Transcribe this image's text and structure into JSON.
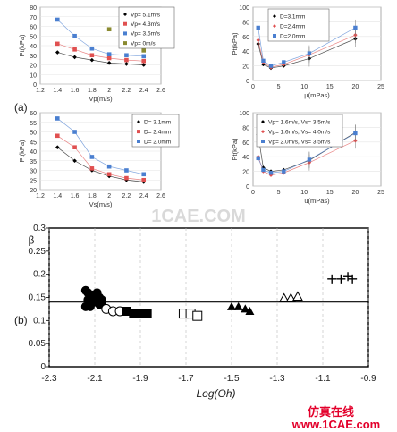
{
  "panel_labels": {
    "a": "(a)",
    "b": "(b)"
  },
  "watermark": {
    "center": "1CAE.COM",
    "corner_cn": "仿真在线",
    "corner_url": "www.1CAE.com",
    "color": "#d9d9d9",
    "corner_color": "#e3002b"
  },
  "chart_data": [
    {
      "id": "a1",
      "type": "scatter",
      "xlabel": "Vp(m/s)",
      "ylabel": "Pt(kPa)",
      "xlim": [
        1.2,
        2.6
      ],
      "ylim": [
        0,
        80
      ],
      "xticks": [
        "1.2",
        "1.4",
        "1.6",
        "1.8",
        "2",
        "2.2",
        "2.4",
        "2.6"
      ],
      "yticks": [
        "0",
        "10",
        "20",
        "30",
        "40",
        "50",
        "60",
        "70",
        "80"
      ],
      "legend_loc": "top-right",
      "series": [
        {
          "name": "Vp= 5.1m/s",
          "marker": "diamond",
          "color": "#000000",
          "x": [
            1.4,
            1.6,
            1.8,
            2.0,
            2.2,
            2.4
          ],
          "y": [
            33,
            28,
            25,
            22,
            21,
            20
          ],
          "line": true
        },
        {
          "name": "Vp= 4.3m/s",
          "marker": "square",
          "color": "#e05050",
          "x": [
            1.4,
            1.6,
            1.8,
            2.0,
            2.2,
            2.4
          ],
          "y": [
            42,
            36,
            30,
            27,
            25,
            24
          ],
          "line": true
        },
        {
          "name": "Vp= 3.5m/s",
          "marker": "square",
          "color": "#4a7fd0",
          "x": [
            1.4,
            1.6,
            1.8,
            2.0,
            2.2,
            2.4
          ],
          "y": [
            67,
            50,
            37,
            31,
            30,
            29
          ],
          "line": true
        },
        {
          "name": "Vp= 0m/s",
          "marker": "square",
          "color": "#8a8a30",
          "x": [
            2.0,
            2.2,
            2.4
          ],
          "y": [
            57,
            43,
            35
          ],
          "line": false
        }
      ]
    },
    {
      "id": "a2",
      "type": "scatter",
      "xlabel": "μ(mPas)",
      "ylabel": "Pt(kPa)",
      "xlim": [
        0,
        25
      ],
      "ylim": [
        0,
        100
      ],
      "xticks": [
        "0",
        "5",
        "10",
        "15",
        "20",
        "25"
      ],
      "yticks": [
        "0",
        "20",
        "40",
        "60",
        "80",
        "100"
      ],
      "legend_loc": "top-left",
      "series": [
        {
          "name": "D=3.1mm",
          "marker": "diamond",
          "color": "#000000",
          "x": [
            1,
            2,
            3.5,
            6,
            11,
            20
          ],
          "y": [
            50,
            22,
            17,
            20,
            30,
            57
          ],
          "line": true
        },
        {
          "name": "D=2.4mm",
          "marker": "diamond",
          "color": "#e05050",
          "x": [
            1,
            2,
            3.5,
            6,
            11,
            20
          ],
          "y": [
            55,
            25,
            18,
            22,
            35,
            62
          ],
          "line": true
        },
        {
          "name": "D=2.0mm",
          "marker": "square",
          "color": "#4a7fd0",
          "x": [
            1,
            2,
            3.5,
            6,
            11,
            20
          ],
          "y": [
            72,
            27,
            20,
            25,
            37,
            72
          ],
          "line": true
        }
      ]
    },
    {
      "id": "a3",
      "type": "scatter",
      "xlabel": "Vs(m/s)",
      "ylabel": "Pt(kPa)",
      "xlim": [
        1.2,
        2.6
      ],
      "ylim": [
        20,
        60
      ],
      "xticks": [
        "1.2",
        "1.4",
        "1.6",
        "1.8",
        "2",
        "2.2",
        "2.4",
        "2.6"
      ],
      "yticks": [
        "20",
        "25",
        "30",
        "35",
        "40",
        "45",
        "50",
        "55",
        "60"
      ],
      "legend_loc": "top-right",
      "series": [
        {
          "name": "D= 3.1mm",
          "marker": "diamond",
          "color": "#000000",
          "x": [
            1.4,
            1.6,
            1.8,
            2.0,
            2.2,
            2.4
          ],
          "y": [
            42,
            35,
            30,
            27,
            25,
            24
          ],
          "line": true
        },
        {
          "name": "D= 2.4mm",
          "marker": "square",
          "color": "#e05050",
          "x": [
            1.4,
            1.6,
            1.8,
            2.0,
            2.2,
            2.4
          ],
          "y": [
            48,
            42,
            31,
            28,
            26,
            25
          ],
          "line": true
        },
        {
          "name": "D= 2.0mm",
          "marker": "square",
          "color": "#4a7fd0",
          "x": [
            1.4,
            1.6,
            1.8,
            2.0,
            2.2,
            2.4
          ],
          "y": [
            57,
            50,
            37,
            32,
            30,
            28
          ],
          "line": true
        }
      ]
    },
    {
      "id": "a4",
      "type": "scatter",
      "xlabel": "u(mPas)",
      "ylabel": "Pt(kPa)",
      "xlim": [
        0,
        25
      ],
      "ylim": [
        0,
        100
      ],
      "xticks": [
        "0",
        "5",
        "10",
        "15",
        "20",
        "25"
      ],
      "yticks": [
        "0",
        "20",
        "40",
        "60",
        "80",
        "100"
      ],
      "legend_loc": "top-left",
      "series": [
        {
          "name": "Vp= 1.6m/s, Vs= 3.5m/s",
          "marker": "diamond",
          "color": "#000000",
          "x": [
            1,
            2,
            3.5,
            6,
            11,
            20
          ],
          "y": [
            70,
            25,
            20,
            22,
            35,
            73
          ],
          "line": true
        },
        {
          "name": "Vp= 1.6m/s, Vs= 4.0m/s",
          "marker": "diamond",
          "color": "#e05050",
          "x": [
            1,
            2,
            3.5,
            6,
            11,
            20
          ],
          "y": [
            40,
            20,
            15,
            18,
            32,
            62
          ],
          "line": true
        },
        {
          "name": "Vp= 2.0m/s, Vs= 3.5m/s",
          "marker": "square",
          "color": "#4a7fd0",
          "x": [
            1,
            2,
            3.5,
            6,
            11,
            20
          ],
          "y": [
            38,
            22,
            18,
            20,
            36,
            72
          ],
          "line": true
        }
      ]
    },
    {
      "id": "b",
      "type": "scatter",
      "xlabel": "Log(Oh)",
      "ylabel": "β",
      "xlim": [
        -2.3,
        -0.9
      ],
      "ylim": [
        0,
        0.3
      ],
      "xticks": [
        "-2.3",
        "-2.1",
        "-1.9",
        "-1.7",
        "-1.5",
        "-1.3",
        "-1.1",
        "-0.9"
      ],
      "yticks": [
        "0",
        "0.05",
        "0.1",
        "0.15",
        "0.2",
        "0.25",
        "0.3"
      ],
      "grid": "vertical",
      "reference_line_y": 0.14,
      "series": [
        {
          "name": "",
          "marker": "circle",
          "color": "#000000",
          "x": [
            -2.14,
            -2.13,
            -2.12,
            -2.11,
            -2.1,
            -2.09,
            -2.08,
            -2.07,
            -2.14,
            -2.12,
            -2.1,
            -2.08,
            -2.13,
            -2.11,
            -2.09,
            -2.07
          ],
          "y": [
            0.165,
            0.16,
            0.155,
            0.15,
            0.145,
            0.14,
            0.135,
            0.14,
            0.13,
            0.13,
            0.14,
            0.15,
            0.145,
            0.155,
            0.16,
            0.145
          ]
        },
        {
          "name": "",
          "marker": "open-circle",
          "color": "#000000",
          "x": [
            -2.05,
            -2.02,
            -1.99
          ],
          "y": [
            0.125,
            0.12,
            0.12
          ]
        },
        {
          "name": "",
          "marker": "square",
          "color": "#000000",
          "x": [
            -1.96,
            -1.93,
            -1.9,
            -1.87
          ],
          "y": [
            0.12,
            0.115,
            0.115,
            0.115
          ]
        },
        {
          "name": "",
          "marker": "open-square",
          "color": "#000000",
          "x": [
            -1.71,
            -1.68,
            -1.65
          ],
          "y": [
            0.115,
            0.115,
            0.11
          ]
        },
        {
          "name": "",
          "marker": "triangle",
          "color": "#000000",
          "x": [
            -1.5,
            -1.47,
            -1.44,
            -1.42
          ],
          "y": [
            0.13,
            0.13,
            0.125,
            0.12
          ]
        },
        {
          "name": "",
          "marker": "open-triangle",
          "color": "#000000",
          "x": [
            -1.27,
            -1.24,
            -1.21
          ],
          "y": [
            0.148,
            0.148,
            0.152
          ]
        },
        {
          "name": "",
          "marker": "plus",
          "color": "#000000",
          "x": [
            -1.06,
            -1.02,
            -0.99,
            -0.97
          ],
          "y": [
            0.19,
            0.19,
            0.195,
            0.19
          ]
        }
      ]
    }
  ]
}
